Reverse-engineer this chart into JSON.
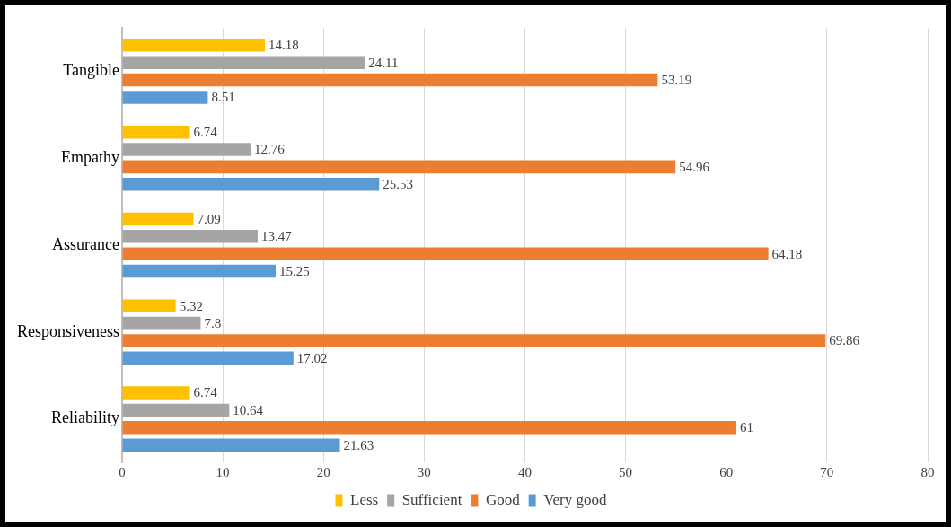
{
  "chart_data": {
    "type": "bar",
    "orientation": "horizontal",
    "categories": [
      "Tangible",
      "Empathy",
      "Assurance",
      "Responsiveness",
      "Reliability"
    ],
    "series": [
      {
        "name": "Less",
        "color": "#ffc000",
        "values": [
          14.18,
          6.74,
          7.09,
          5.32,
          6.74
        ]
      },
      {
        "name": "Sufficient",
        "color": "#a5a5a5",
        "values": [
          24.11,
          12.76,
          13.47,
          7.8,
          10.64
        ]
      },
      {
        "name": "Good",
        "color": "#ed7d31",
        "values": [
          53.19,
          54.96,
          64.18,
          69.86,
          61
        ]
      },
      {
        "name": "Very good",
        "color": "#5b9bd5",
        "values": [
          8.51,
          25.53,
          15.25,
          17.02,
          21.63
        ]
      }
    ],
    "xlim": [
      0,
      80
    ],
    "xticks": [
      0,
      10,
      20,
      30,
      40,
      50,
      60,
      70,
      80
    ],
    "grid": "x",
    "legend": "bottom",
    "data_labels": true
  }
}
